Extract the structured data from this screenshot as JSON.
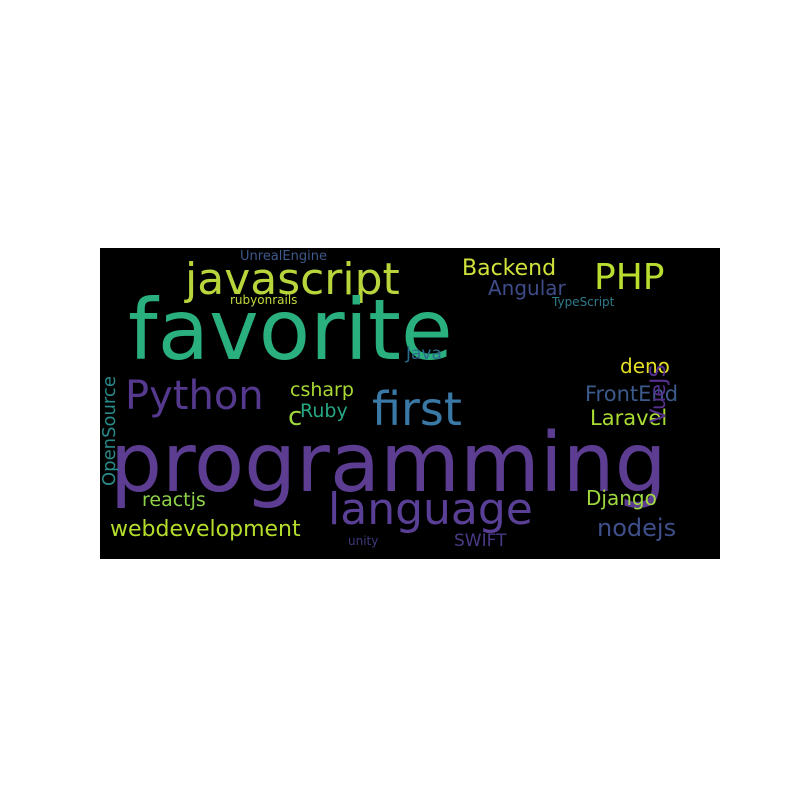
{
  "wordcloud": {
    "words": {
      "programming": {
        "text": "programming",
        "color": "#5c3d92"
      },
      "favorite": {
        "text": "favorite",
        "color": "#2ab07f"
      },
      "language": {
        "text": "language",
        "color": "#5a3f96"
      },
      "javascript": {
        "text": "javascript",
        "color": "#b8d63c"
      },
      "first": {
        "text": "first",
        "color": "#3a78a6"
      },
      "python": {
        "text": "Python",
        "color": "#55398e"
      },
      "php": {
        "text": "PHP",
        "color": "#b9de2f"
      },
      "backend": {
        "text": "Backend",
        "color": "#cfe13a"
      },
      "angular": {
        "text": "Angular",
        "color": "#3f4c8a"
      },
      "vuejs": {
        "text": "VueJS",
        "color": "#55318d"
      },
      "deno": {
        "text": "deno",
        "color": "#e5df26"
      },
      "frontend": {
        "text": "FrontEnd",
        "color": "#3c5a8b"
      },
      "laravel": {
        "text": "Laravel",
        "color": "#a8db34"
      },
      "java": {
        "text": "Java",
        "color": "#2b6b8e"
      },
      "csharp": {
        "text": "csharp",
        "color": "#a9d932"
      },
      "ruby": {
        "text": "Ruby",
        "color": "#26a884"
      },
      "c": {
        "text": "c",
        "color": "#9fd83d"
      },
      "reactjs": {
        "text": "reactjs",
        "color": "#8ed24a"
      },
      "webdevelopment": {
        "text": "webdevelopment",
        "color": "#b5dd2b"
      },
      "django": {
        "text": "Django",
        "color": "#9fd840"
      },
      "nodejs": {
        "text": "nodejs",
        "color": "#3e4f8a"
      },
      "swift": {
        "text": "SWIFT",
        "color": "#4a3a86"
      },
      "unity": {
        "text": "unity",
        "color": "#3d3a7c"
      },
      "opensource": {
        "text": "OpenSource",
        "color": "#2a8a8a"
      },
      "unrealengine": {
        "text": "UnrealEngine",
        "color": "#3e5a8c"
      },
      "rubyonrails": {
        "text": "rubyonrails",
        "color": "#c3d83b"
      },
      "typescript": {
        "text": "TypeScript",
        "color": "#2e7b8c"
      }
    }
  }
}
